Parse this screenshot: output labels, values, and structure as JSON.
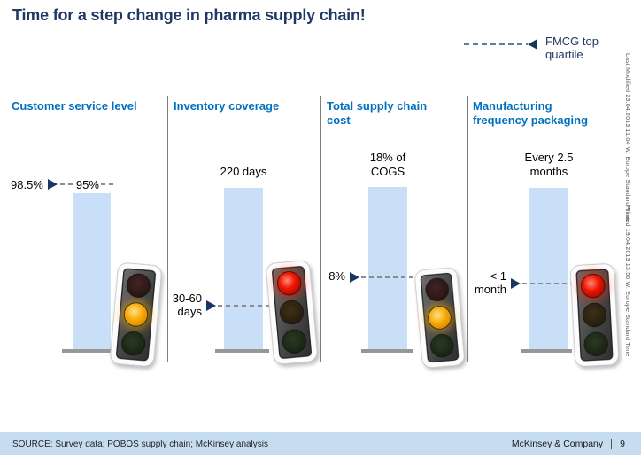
{
  "slide": {
    "title": "Time for a step change in pharma supply chain!",
    "legend": {
      "label": "FMCG top\nquartile"
    },
    "side_stamps": {
      "last_modified": "Last Modified 23.04.2013 11:04 W. Europe Standard Time",
      "printed": "Printed 19.04.2013 13:50 W. Europe Standard Time"
    },
    "footer": {
      "source": "SOURCE: Survey data; POBOS supply chain; McKinsey analysis",
      "company": "McKinsey & Company",
      "page_number": "9"
    }
  },
  "colors": {
    "title_navy": "#1F3864",
    "header_blue": "#0070C0",
    "bar_blue": "#C9DFF7",
    "footer_band": "#C6DCF1",
    "status_red": "#D40000",
    "status_amber": "#F5A300"
  },
  "chart_data": {
    "type": "bar",
    "title": "Time for a step change in pharma supply chain!",
    "benchmark_legend": "FMCG top quartile",
    "note": "Each panel: light-blue bar = current pharma level; dashed line with arrow = FMCG top quartile benchmark; traffic light shows status",
    "panels": [
      {
        "category": "Customer service level",
        "current_value_label": "95%",
        "current_value": 95,
        "benchmark_label": "98.5%",
        "benchmark_value": 98.5,
        "unit": "%",
        "status_light": "amber"
      },
      {
        "category": "Inventory coverage",
        "current_value_label": "220 days",
        "current_value": 220,
        "benchmark_label": "30-60\ndays",
        "benchmark_value": "30-60",
        "unit": "days",
        "status_light": "red"
      },
      {
        "category": "Total supply chain\ncost",
        "current_value_label": "18% of\nCOGS",
        "current_value": 18,
        "benchmark_label": "8%",
        "benchmark_value": 8,
        "unit": "% of COGS",
        "status_light": "amber"
      },
      {
        "category": "Manufacturing\nfrequency packaging",
        "current_value_label": "Every 2.5\nmonths",
        "current_value": 2.5,
        "benchmark_label": "< 1\nmonth",
        "benchmark_value": "<1",
        "unit": "months",
        "status_light": "red"
      }
    ]
  }
}
